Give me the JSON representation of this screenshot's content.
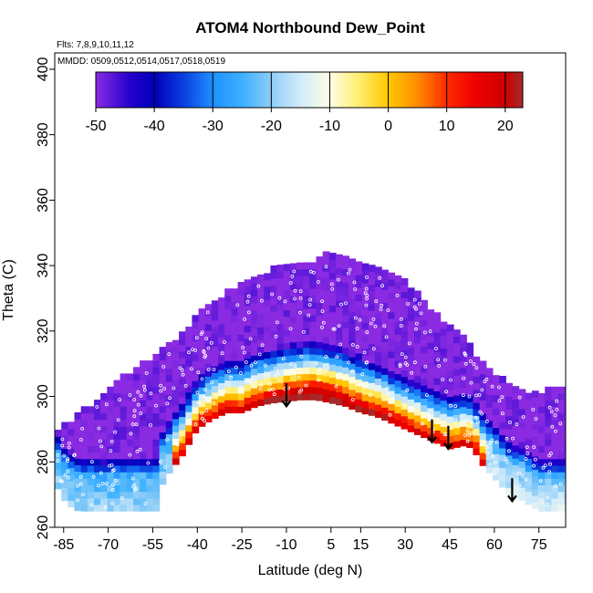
{
  "chart_data": {
    "type": "heatmap",
    "title": "ATOM4 Northbound Dew_Point",
    "subtitle_flights": "Flts: 7,8,9,10,11,12",
    "subtitle_dates": "MMDD: 0509,0512,0514,0517,0518,0519",
    "xlabel": "Latitude (deg N)",
    "ylabel": "Theta (C)",
    "xlim": [
      -88,
      84
    ],
    "ylim": [
      260,
      405
    ],
    "x_ticks": [
      -85,
      -70,
      -55,
      -40,
      -25,
      -10,
      5,
      15,
      30,
      45,
      60,
      75
    ],
    "y_ticks": [
      260,
      280,
      300,
      320,
      340,
      360,
      380,
      400
    ],
    "colorbar": {
      "range": [
        -50,
        23
      ],
      "ticks": [
        -50,
        -40,
        -30,
        -20,
        -10,
        0,
        10,
        20
      ],
      "stops": [
        {
          "value": -50,
          "color": "#8a2be2"
        },
        {
          "value": -44,
          "color": "#2200cc"
        },
        {
          "value": -40,
          "color": "#0000b8"
        },
        {
          "value": -35,
          "color": "#0a3ee0"
        },
        {
          "value": -30,
          "color": "#1e90ff"
        },
        {
          "value": -25,
          "color": "#3cb0ff"
        },
        {
          "value": -20,
          "color": "#8ecdf7"
        },
        {
          "value": -15,
          "color": "#d2ecfa"
        },
        {
          "value": -10,
          "color": "#fffde6"
        },
        {
          "value": -5,
          "color": "#ffee70"
        },
        {
          "value": 0,
          "color": "#ffc800"
        },
        {
          "value": 5,
          "color": "#ff8c00"
        },
        {
          "value": 10,
          "color": "#ff2a00"
        },
        {
          "value": 15,
          "color": "#ee0000"
        },
        {
          "value": 20,
          "color": "#cc0000"
        },
        {
          "value": 23,
          "color": "#a52a2a"
        }
      ]
    },
    "profile": [
      {
        "lat": -87,
        "bottom": 272,
        "top": 289
      },
      {
        "lat": -84,
        "bottom": 267,
        "top": 291
      },
      {
        "lat": -80,
        "bottom": 265,
        "top": 294
      },
      {
        "lat": -75,
        "bottom": 265,
        "top": 297
      },
      {
        "lat": -70,
        "bottom": 265,
        "top": 301
      },
      {
        "lat": -65,
        "bottom": 265,
        "top": 305
      },
      {
        "lat": -60,
        "bottom": 265,
        "top": 308
      },
      {
        "lat": -55,
        "bottom": 265,
        "top": 311
      },
      {
        "lat": -53.5,
        "bottom": 265,
        "top": 312
      },
      {
        "lat": -53,
        "bottom": 271,
        "top": 312
      },
      {
        "lat": -50,
        "bottom": 276,
        "top": 315
      },
      {
        "lat": -45,
        "bottom": 282,
        "top": 319
      },
      {
        "lat": -40,
        "bottom": 290,
        "top": 324
      },
      {
        "lat": -35,
        "bottom": 293,
        "top": 328
      },
      {
        "lat": -30,
        "bottom": 295,
        "top": 331
      },
      {
        "lat": -25,
        "bottom": 295,
        "top": 334
      },
      {
        "lat": -20,
        "bottom": 297,
        "top": 336
      },
      {
        "lat": -15,
        "bottom": 298,
        "top": 338
      },
      {
        "lat": -10,
        "bottom": 298.5,
        "top": 339
      },
      {
        "lat": -5,
        "bottom": 299,
        "top": 340
      },
      {
        "lat": 0,
        "bottom": 299,
        "top": 341
      },
      {
        "lat": 5,
        "bottom": 298,
        "top": 344
      },
      {
        "lat": 10,
        "bottom": 297,
        "top": 341
      },
      {
        "lat": 15,
        "bottom": 295,
        "top": 340
      },
      {
        "lat": 20,
        "bottom": 294,
        "top": 338
      },
      {
        "lat": 25,
        "bottom": 292,
        "top": 337
      },
      {
        "lat": 30,
        "bottom": 290,
        "top": 334
      },
      {
        "lat": 35,
        "bottom": 288,
        "top": 330
      },
      {
        "lat": 40,
        "bottom": 286,
        "top": 325
      },
      {
        "lat": 45,
        "bottom": 284,
        "top": 321
      },
      {
        "lat": 50,
        "bottom": 285,
        "top": 317
      },
      {
        "lat": 53,
        "bottom": 284,
        "top": 313
      },
      {
        "lat": 55,
        "bottom": 280,
        "top": 310
      },
      {
        "lat": 60,
        "bottom": 275,
        "top": 306
      },
      {
        "lat": 65,
        "bottom": 270,
        "top": 303
      },
      {
        "lat": 70,
        "bottom": 268,
        "top": 301
      },
      {
        "lat": 75,
        "bottom": 265,
        "top": 300
      },
      {
        "lat": 80,
        "bottom": 265,
        "top": 302
      },
      {
        "lat": 83,
        "bottom": 265,
        "top": 303
      }
    ],
    "arrows": [
      {
        "lat": -10,
        "theta_top": 304,
        "theta_bottom": 297
      },
      {
        "lat": 39,
        "theta_top": 293,
        "theta_bottom": 286
      },
      {
        "lat": 44.5,
        "theta_top": 291,
        "theta_bottom": 284
      },
      {
        "lat": 66,
        "theta_top": 275,
        "theta_bottom": 268
      }
    ]
  }
}
